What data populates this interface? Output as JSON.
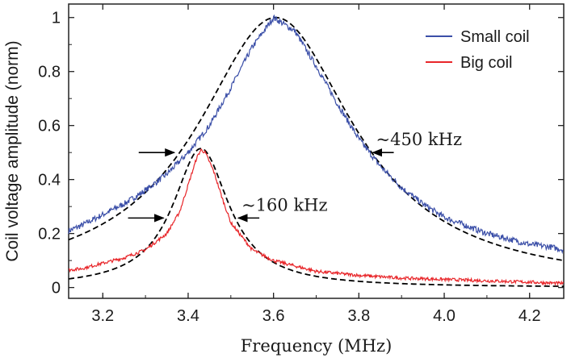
{
  "chart_data": {
    "type": "line",
    "xlabel": "Frequency (MHz)",
    "ylabel": "Coil voltage amplitude (norm)",
    "xlim": [
      3.12,
      4.28
    ],
    "ylim": [
      -0.04,
      1.05
    ],
    "xticks": [
      3.2,
      3.4,
      3.6,
      3.8,
      4.0,
      4.2
    ],
    "xtick_labels": [
      "3.2",
      "3.4",
      "3.6",
      "3.8",
      "4.0",
      "4.2"
    ],
    "yticks": [
      0,
      0.2,
      0.4,
      0.6,
      0.8,
      1.0
    ],
    "ytick_labels": [
      "0",
      "0.2",
      "0.4",
      "0.6",
      "0.8",
      "1"
    ],
    "grid": false,
    "legend_position": "top-right",
    "series": [
      {
        "name": "Small coil",
        "color": "#3b4fa8",
        "style": "solid-noisy",
        "x": [
          3.12,
          3.15,
          3.2,
          3.25,
          3.3,
          3.35,
          3.4,
          3.45,
          3.5,
          3.55,
          3.6,
          3.65,
          3.7,
          3.75,
          3.8,
          3.85,
          3.9,
          3.95,
          4.0,
          4.05,
          4.1,
          4.15,
          4.2,
          4.25,
          4.28
        ],
        "y": [
          0.21,
          0.23,
          0.27,
          0.31,
          0.36,
          0.42,
          0.5,
          0.6,
          0.74,
          0.89,
          1.0,
          0.95,
          0.82,
          0.68,
          0.55,
          0.45,
          0.37,
          0.31,
          0.26,
          0.23,
          0.2,
          0.18,
          0.16,
          0.15,
          0.14
        ]
      },
      {
        "name": "Big coil",
        "color": "#e8262a",
        "style": "solid-noisy",
        "x": [
          3.12,
          3.15,
          3.2,
          3.25,
          3.3,
          3.35,
          3.38,
          3.4,
          3.42,
          3.43,
          3.44,
          3.46,
          3.48,
          3.5,
          3.55,
          3.6,
          3.7,
          3.8,
          3.9,
          4.0,
          4.1,
          4.2,
          4.28
        ],
        "y": [
          0.065,
          0.07,
          0.09,
          0.11,
          0.14,
          0.2,
          0.28,
          0.38,
          0.48,
          0.51,
          0.5,
          0.43,
          0.33,
          0.24,
          0.14,
          0.1,
          0.06,
          0.045,
          0.035,
          0.03,
          0.025,
          0.02,
          0.015
        ]
      },
      {
        "name": "Lorentzian fit (small)",
        "color": "#000000",
        "style": "dashed",
        "model": "lorentzian",
        "center": 3.605,
        "fwhm": 0.45,
        "amplitude": 1.0
      },
      {
        "name": "Lorentzian fit (big)",
        "color": "#000000",
        "style": "dashed",
        "model": "lorentzian",
        "center": 3.43,
        "fwhm": 0.16,
        "amplitude": 0.515
      }
    ],
    "legend": [
      {
        "label": "Small coil",
        "color": "#3b4fa8"
      },
      {
        "label": "Big coil",
        "color": "#e8262a"
      }
    ],
    "annotations": [
      {
        "text": "~450 kHz",
        "target_series": "Small coil",
        "left_x": 3.375,
        "right_x": 3.825,
        "y": 0.5
      },
      {
        "text": "~160 kHz",
        "target_series": "Big coil",
        "left_x": 3.35,
        "right_x": 3.51,
        "y": 0.2575
      }
    ]
  }
}
